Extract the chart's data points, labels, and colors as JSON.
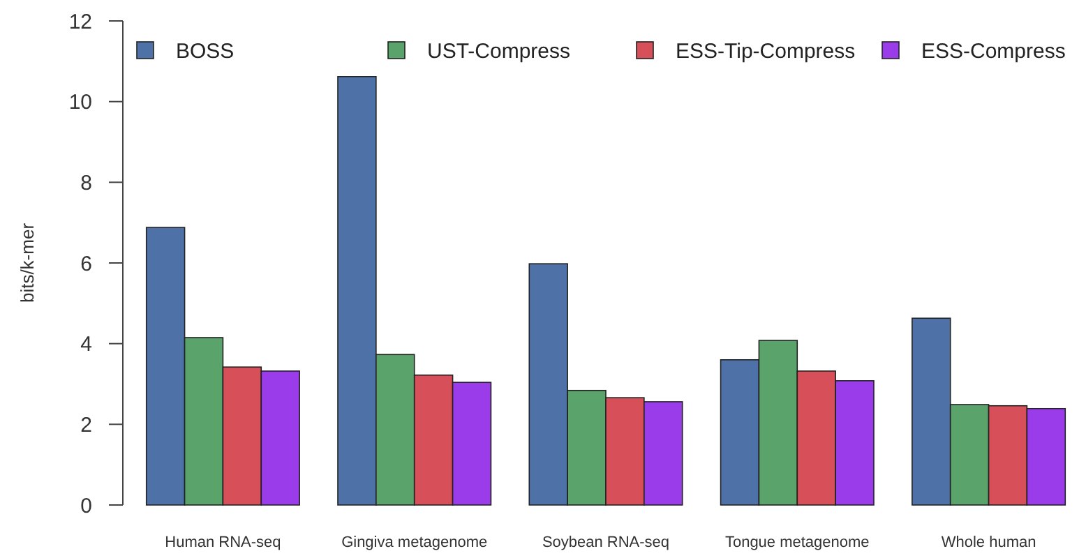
{
  "chart_data": {
    "type": "bar",
    "ylabel": "bits/k-mer",
    "categories": [
      "Human RNA-seq",
      "Gingiva metagenome",
      "Soybean RNA-seq",
      "Tongue metagenome",
      "Whole human"
    ],
    "series": [
      {
        "name": "BOSS",
        "color": "#4e72a8",
        "values": [
          6.88,
          10.62,
          5.98,
          3.6,
          4.63
        ]
      },
      {
        "name": "UST-Compress",
        "color": "#5aa46c",
        "values": [
          4.15,
          3.73,
          2.84,
          4.08,
          2.49
        ]
      },
      {
        "name": "ESS-Tip-Compress",
        "color": "#d64f59",
        "values": [
          3.42,
          3.22,
          2.66,
          3.32,
          2.46
        ]
      },
      {
        "name": "ESS-Compress",
        "color": "#9b3ceb",
        "values": [
          3.32,
          3.04,
          2.56,
          3.08,
          2.39
        ]
      }
    ],
    "ylim": [
      0,
      12
    ],
    "yticks": [
      0,
      2,
      4,
      6,
      8,
      10,
      12
    ],
    "legend": "top",
    "grid": false
  }
}
